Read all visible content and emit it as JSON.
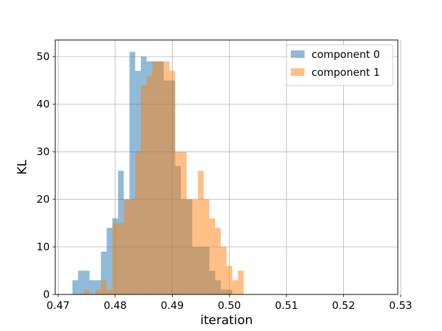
{
  "chart_data": {
    "type": "histogram",
    "xlabel": "iteration",
    "ylabel": "KL",
    "xlim": [
      0.4695,
      0.5295
    ],
    "ylim": [
      0,
      53.5
    ],
    "x_ticks": [
      0.47,
      0.48,
      0.49,
      0.5,
      0.51,
      0.52,
      0.53
    ],
    "x_tick_labels": [
      "0.47",
      "0.48",
      "0.49",
      "0.50",
      "0.51",
      "0.52",
      "0.53"
    ],
    "y_ticks": [
      0,
      10,
      20,
      30,
      40,
      50
    ],
    "y_tick_labels": [
      "0",
      "10",
      "20",
      "30",
      "40",
      "50"
    ],
    "grid": true,
    "legend_position": "top-right",
    "series": [
      {
        "name": "component 0",
        "color": "#1f77b4",
        "alpha": 0.5,
        "bins_start": 0.4725,
        "bin_width": 0.001,
        "counts": [
          3,
          5,
          5,
          3,
          3,
          9,
          14,
          16,
          26,
          20,
          51,
          47,
          50,
          49,
          49,
          49,
          45,
          45,
          27,
          20,
          20,
          10,
          10,
          10,
          5,
          3,
          1,
          1,
          0,
          0
        ]
      },
      {
        "name": "component 1",
        "color": "#ff7f0e",
        "alpha": 0.5,
        "bins_start": 0.4725,
        "bin_width": 0.001,
        "counts": [
          0,
          0,
          1,
          0,
          1,
          3,
          1,
          15,
          15,
          20,
          20,
          30,
          44,
          46,
          49,
          49,
          49,
          47,
          30,
          30,
          20,
          20,
          26,
          20,
          16,
          14,
          10,
          6,
          3,
          5
        ]
      }
    ]
  }
}
